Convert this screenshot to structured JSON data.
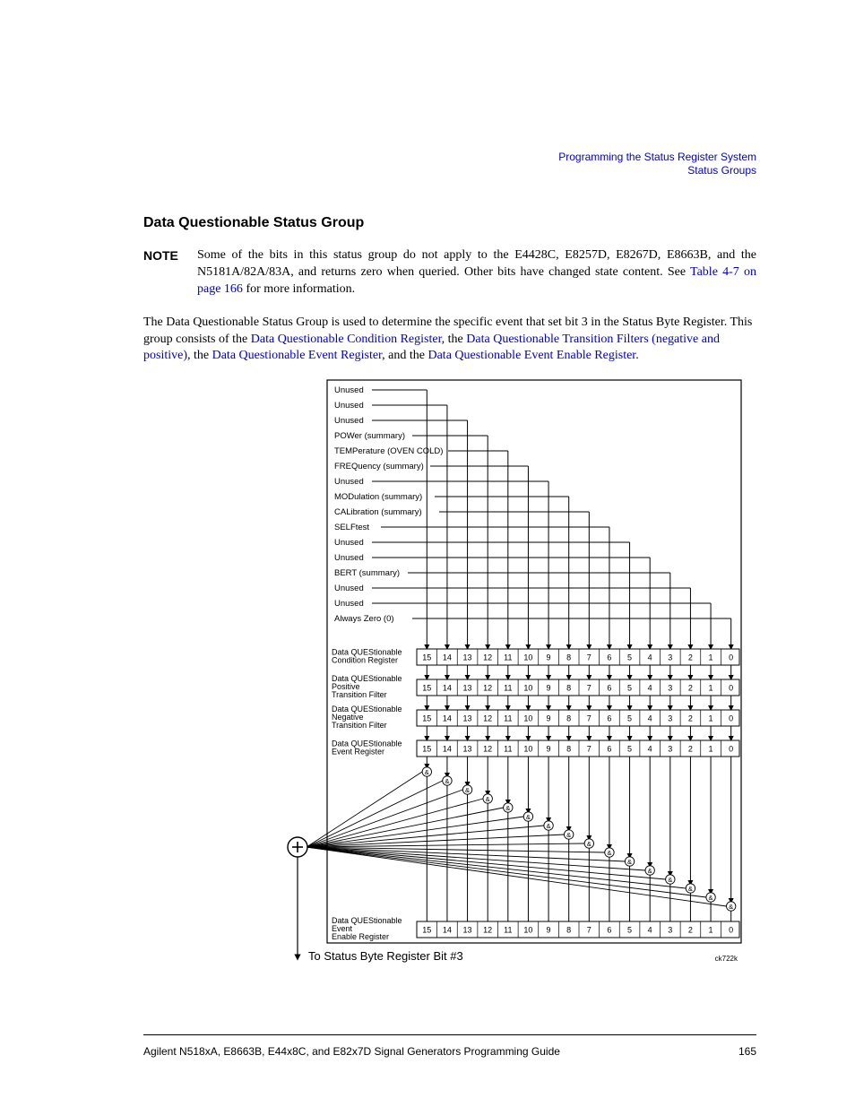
{
  "header": {
    "line1": "Programming the Status Register System",
    "line2": "Status Groups",
    "color": "#0000cc"
  },
  "section_title": "Data Questionable Status Group",
  "note": {
    "label": "NOTE",
    "text_a": "Some of the bits in this status group do not apply to the E4428C, E8257D, E8267D, E8663B, and the N5181A/82A/83A, and returns zero when queried. Other bits have changed state content. See ",
    "link1": "Table 4-7 on page 166",
    "text_b": " for more information."
  },
  "intro": {
    "t1": "The Data Questionable Status Group is used to determine the specific event that set bit 3 in the Status Byte Register. This group consists of the ",
    "l1": "Data Questionable Condition Register",
    "t2": ", the ",
    "l2": "Data Questionable Transition Filters (negative and positive)",
    "t3": ", the ",
    "l3": "Data Questionable Event Register",
    "t4": ", and the ",
    "l4": "Data Questionable Event Enable Register",
    "t5": "."
  },
  "diagram": {
    "border_color": "#000000",
    "bg_color": "#ffffff",
    "font_family": "Arial, Helvetica, sans-serif",
    "signal_labels": [
      "Unused",
      "Unused",
      "Unused",
      "POWer (summary)",
      "TEMPerature (OVEN COLD)",
      "FREQuency (summary)",
      "Unused",
      "MODulation (summary)",
      "CALibration (summary)",
      "SELFtest",
      "Unused",
      "Unused",
      "BERT (summary)",
      "Unused",
      "Unused",
      "Always Zero (0)"
    ],
    "register_labels": [
      [
        "Data QUEStionable",
        "Condition Register"
      ],
      [
        "Data QUEStionable",
        "Positive",
        "Transition Filter"
      ],
      [
        "Data QUEStionable",
        "Negative",
        "Transition Filter"
      ],
      [
        "Data QUEStionable",
        "Event Register"
      ],
      [
        "Data QUEStionable",
        "Event",
        "Enable Register"
      ]
    ],
    "bits": [
      "15",
      "14",
      "13",
      "12",
      "11",
      "10",
      "9",
      "8",
      "7",
      "6",
      "5",
      "4",
      "3",
      "2",
      "1",
      "0"
    ],
    "and_symbol": "&",
    "plus_symbol": "+",
    "output_label": "To Status Byte Register Bit #3",
    "figure_id": "ck722k",
    "label_fontsize": 9.5,
    "reg_fontsize": 9,
    "bit_fontsize": 9,
    "out_fontsize": 13
  },
  "footer": {
    "guide": "Agilent N518xA, E8663B, E44x8C, and E82x7D Signal Generators Programming Guide",
    "page": "165"
  }
}
